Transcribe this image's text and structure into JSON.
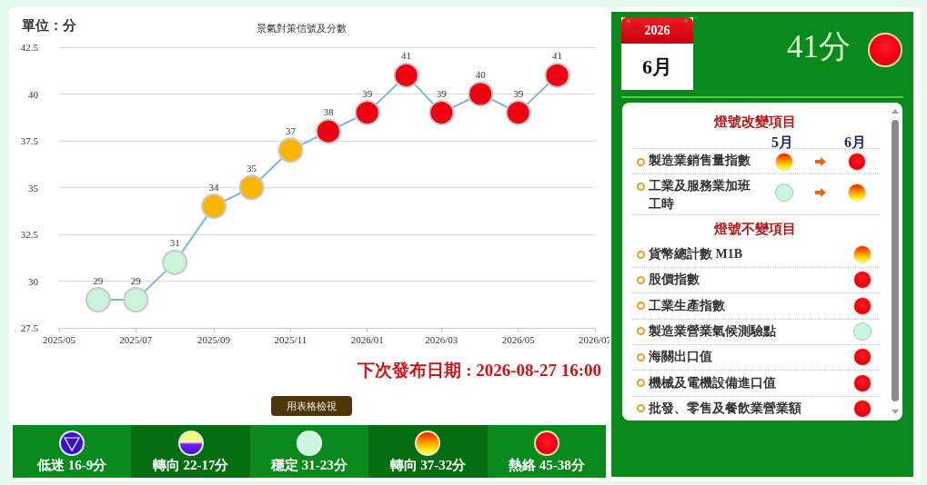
{
  "chart_data": [
    {
      "type": "line",
      "title": "景氣對策信號及分數",
      "ylabel": "單位：分",
      "x": [
        "2025-06",
        "2025-07",
        "2025-08",
        "2025-09",
        "2025-10",
        "2025-11",
        "2025-12",
        "2026-01",
        "2026-02",
        "2026-03",
        "2026-04",
        "2026-05",
        "2026-06"
      ],
      "values": [
        29,
        29,
        31,
        34,
        35,
        37,
        38,
        39,
        41,
        39,
        40,
        39,
        41
      ],
      "color": "#7fb2dc",
      "colors": [
        "#c8f5da",
        "#c8f5da",
        "#c8f5da",
        "#ffb400",
        "#ffb400",
        "#ffb400",
        "#ee0011",
        "#ee0011",
        "#ee0011",
        "#ee0011",
        "#ee0011",
        "#ee0011",
        "#ee0011"
      ],
      "xlim": [
        "2025-05",
        "2026-07"
      ],
      "xticks": [
        {
          "value": "2025-05",
          "label": "2025/05"
        },
        {
          "value": "2025-07",
          "label": "2025/07"
        },
        {
          "value": "2025-09",
          "label": "2025/09"
        },
        {
          "value": "2025-11",
          "label": "2025/11"
        },
        {
          "value": "2026-01",
          "label": "2026/01"
        },
        {
          "value": "2026-03",
          "label": "2026/03"
        },
        {
          "value": "2026-05",
          "label": "2026/05"
        },
        {
          "value": "2026-07",
          "label": "2026/07"
        }
      ],
      "ylim": [
        27.5,
        42.5
      ],
      "yticks": [
        27.5,
        30,
        32.5,
        35,
        37.5,
        40,
        42.5
      ],
      "grid": "y",
      "marker": "circle",
      "line_style": "solid",
      "data_labels": true,
      "annotations": [
        "下次發布日期 : 2026-08-27 16:00",
        "用表格檢視",
        "低迷 16-9分",
        "轉向 22-17分",
        "穩定 31-23分",
        "轉向 37-32分",
        "熱絡 45-38分"
      ]
    },
    {
      "type": "other",
      "annotations": [
        "2026",
        "6月",
        "41分",
        "燈號改變項目",
        "5月",
        "6月",
        "製造業銷售量指數",
        "工業及服務業加班工時",
        "燈號不變項目",
        "貨幣總計數 M1B",
        "股價指數",
        "工業生產指數",
        "製造業營業氣候測驗點",
        "海關出口值",
        "機械及電機設備進口值",
        "批發、零售及餐飲業營業額"
      ]
    }
  ]
}
